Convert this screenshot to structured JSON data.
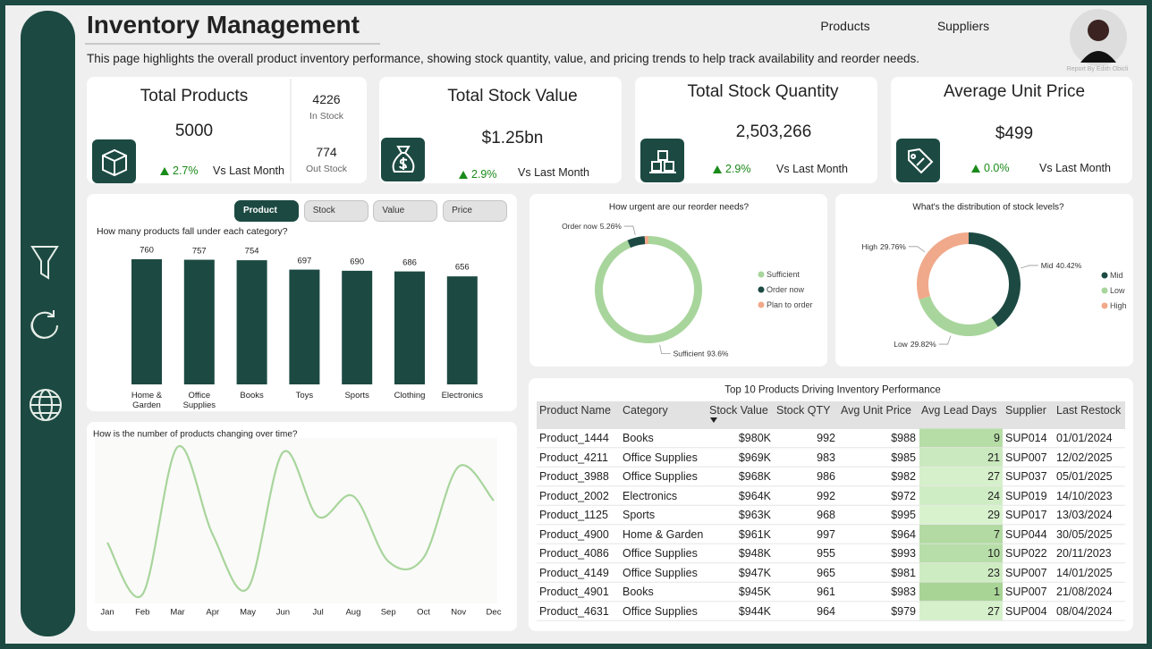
{
  "header": {
    "title": "Inventory Management",
    "subtitle": "This page highlights the overall product inventory performance, showing stock quantity, value, and pricing trends to help track availability and reorder needs.",
    "nav": [
      "Products",
      "Suppliers"
    ],
    "credit": "Report By Edith Obicli"
  },
  "kpis": [
    {
      "title": "Total Products",
      "value": 5000,
      "change": "2.7%",
      "comparison": "Vs Last Month",
      "breakdown": [
        {
          "value": 4226,
          "label": "In Stock"
        },
        {
          "value": 774,
          "label": "Out Stock"
        }
      ]
    },
    {
      "title": "Total Stock Value",
      "value": "$1.25bn",
      "change": "2.9%",
      "comparison": "Vs Last Month"
    },
    {
      "title": "Total Stock Quantity",
      "value": "2,503,266",
      "change": "2.9%",
      "comparison": "Vs Last Month"
    },
    {
      "title": "Average Unit Price",
      "value": "$499",
      "change": "0.0%",
      "comparison": "Vs Last Month"
    }
  ],
  "bar_chart": {
    "type": "bar",
    "buttons": [
      "Product",
      "Stock",
      "Value",
      "Price"
    ],
    "selected_button": 0,
    "title": "How many products fall under each category?",
    "categories": [
      "Home & Garden",
      "Office Supplies",
      "Books",
      "Toys",
      "Sports",
      "Clothing",
      "Electronics"
    ],
    "values": [
      760,
      757,
      754,
      697,
      690,
      686,
      656
    ],
    "color": "#1c4a42"
  },
  "reorder_chart": {
    "type": "donut",
    "title": "How urgent are our reorder needs?",
    "categories": [
      "Sufficient",
      "Order now",
      "Plan to order"
    ],
    "values": [
      93.6,
      5.26,
      1.14
    ],
    "value_labels": [
      "93.6%",
      "5.26%",
      null
    ],
    "colors": [
      "#a8d59c",
      "#1c4a42",
      "#f0a98a"
    ],
    "legend": "right"
  },
  "stock_level_chart": {
    "type": "donut",
    "title": "What's the distribution of stock levels?",
    "categories": [
      "Mid",
      "Low",
      "High"
    ],
    "values": [
      40.42,
      29.82,
      29.76
    ],
    "value_labels": [
      "40.42%",
      "29.82%",
      "29.76%"
    ],
    "colors": [
      "#1c4a42",
      "#a8d59c",
      "#f0a98a"
    ],
    "legend": "right"
  },
  "trend_chart": {
    "type": "line",
    "title": "How is the number of products changing over time?",
    "categories": [
      "Jan",
      "Feb",
      "Mar",
      "Apr",
      "May",
      "Jun",
      "Jul",
      "Aug",
      "Sep",
      "Oct",
      "Nov",
      "Dec"
    ],
    "values": [
      93,
      35,
      200,
      102,
      42,
      194,
      122,
      145,
      72,
      76,
      178,
      140
    ],
    "color": "#a8d59c"
  },
  "table": {
    "title": "Top 10 Products Driving Inventory Performance",
    "columns": [
      "Product Name",
      "Category",
      "Stock Value",
      "Stock QTY",
      "Avg Unit Price",
      "Avg Lead Days",
      "Supplier",
      "Last Restock"
    ],
    "sort_column": 2,
    "rows": [
      [
        "Product_1444",
        "Books",
        "$980K",
        992,
        "$988",
        9,
        "SUP014",
        "01/01/2024"
      ],
      [
        "Product_4211",
        "Office Supplies",
        "$969K",
        983,
        "$985",
        21,
        "SUP007",
        "12/02/2025"
      ],
      [
        "Product_3988",
        "Office Supplies",
        "$968K",
        986,
        "$982",
        27,
        "SUP037",
        "05/01/2025"
      ],
      [
        "Product_2002",
        "Electronics",
        "$964K",
        992,
        "$972",
        24,
        "SUP019",
        "14/10/2023"
      ],
      [
        "Product_1125",
        "Sports",
        "$963K",
        968,
        "$995",
        29,
        "SUP017",
        "13/03/2024"
      ],
      [
        "Product_4900",
        "Home & Garden",
        "$961K",
        997,
        "$964",
        7,
        "SUP044",
        "30/05/2025"
      ],
      [
        "Product_4086",
        "Office Supplies",
        "$948K",
        955,
        "$993",
        10,
        "SUP022",
        "20/11/2023"
      ],
      [
        "Product_4149",
        "Office Supplies",
        "$947K",
        965,
        "$981",
        23,
        "SUP007",
        "14/01/2025"
      ],
      [
        "Product_4901",
        "Books",
        "$945K",
        961,
        "$983",
        1,
        "SUP007",
        "21/08/2024"
      ],
      [
        "Product_4631",
        "Office Supplies",
        "$944K",
        964,
        "$979",
        27,
        "SUP004",
        "08/04/2024"
      ]
    ]
  }
}
